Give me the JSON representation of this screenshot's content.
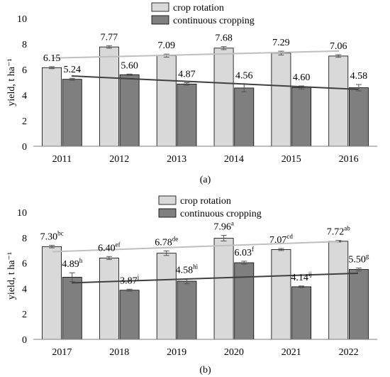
{
  "panels": [
    {
      "caption": "(a)",
      "ylabel": "yield, t ha⁻¹",
      "chart_data": {
        "type": "bar",
        "categories": [
          "2011",
          "2012",
          "2013",
          "2014",
          "2015",
          "2016"
        ],
        "series": [
          {
            "name": "crop rotation",
            "color": "#d9d9d9",
            "values": [
              6.15,
              7.77,
              7.09,
              7.68,
              7.29,
              7.06
            ],
            "labels": [
              "6.15",
              "7.77",
              "7.09",
              "7.68",
              "7.29",
              "7.06"
            ],
            "superscripts": [
              "",
              "",
              "",
              "",
              "",
              ""
            ],
            "errors": [
              0.08,
              0.1,
              0.12,
              0.12,
              0.15,
              0.1
            ]
          },
          {
            "name": "continuous cropping",
            "color": "#7f7f7f",
            "values": [
              5.24,
              5.6,
              4.87,
              4.56,
              4.6,
              4.58
            ],
            "labels": [
              "5.24",
              "5.60",
              "4.87",
              "4.56",
              "4.60",
              "4.58"
            ],
            "superscripts": [
              "",
              "",
              "",
              "",
              "",
              ""
            ],
            "errors": [
              0.08,
              0.05,
              0.1,
              0.3,
              0.12,
              0.25
            ]
          }
        ],
        "trendlines": [
          {
            "series": "crop rotation",
            "color": "#bfbfbf",
            "start": 6.9,
            "end": 7.45
          },
          {
            "series": "continuous cropping",
            "color": "#404040",
            "start": 5.5,
            "end": 4.45
          }
        ],
        "yticks": [
          "0",
          "2",
          "4",
          "6",
          "8",
          "10"
        ],
        "ylim": [
          0,
          10
        ],
        "legend_position": "top-right"
      }
    },
    {
      "caption": "(b)",
      "ylabel": "yield, t ha⁻¹",
      "chart_data": {
        "type": "bar",
        "categories": [
          "2017",
          "2018",
          "2019",
          "2020",
          "2021",
          "2022"
        ],
        "series": [
          {
            "name": "crop rotation",
            "color": "#d9d9d9",
            "values": [
              7.3,
              6.4,
              6.78,
              7.96,
              7.07,
              7.72
            ],
            "labels": [
              "7.30",
              "6.40",
              "6.78",
              "7.96",
              "7.07",
              "7.72"
            ],
            "superscripts": [
              "bc",
              "ef",
              "de",
              "a",
              "cd",
              "ab"
            ],
            "errors": [
              0.1,
              0.12,
              0.18,
              0.22,
              0.08,
              0.06
            ]
          },
          {
            "name": "continuous cropping",
            "color": "#7f7f7f",
            "values": [
              4.89,
              3.87,
              4.58,
              6.03,
              4.14,
              5.5
            ],
            "labels": [
              "4.89",
              "3.87",
              "4.58",
              "6.03",
              "4.14",
              "5.50"
            ],
            "superscripts": [
              "h",
              "j",
              "hi",
              "f",
              "ij",
              "g"
            ],
            "errors": [
              0.35,
              0.08,
              0.2,
              0.12,
              0.06,
              0.12
            ]
          }
        ],
        "trendlines": [
          {
            "series": "crop rotation",
            "color": "#bfbfbf",
            "start": 6.9,
            "end": 7.7
          },
          {
            "series": "continuous cropping",
            "color": "#404040",
            "start": 4.45,
            "end": 5.2
          }
        ],
        "yticks": [
          "0",
          "2",
          "4",
          "6",
          "8",
          "10"
        ],
        "ylim": [
          0,
          10
        ],
        "legend_position": "top-left"
      }
    }
  ]
}
